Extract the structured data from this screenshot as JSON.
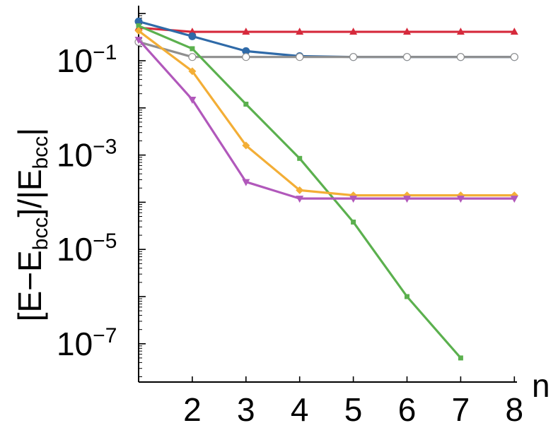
{
  "chart_data": {
    "type": "line",
    "x": [
      1,
      2,
      3,
      4,
      5,
      6,
      7,
      8
    ],
    "xlabel": "n",
    "ylabel": {
      "open_bracket": "[E−E",
      "sub1": "bcc",
      "close_bracket": "]/|E",
      "sub2": "bcc",
      "close_bar": "|"
    },
    "yscale": "log",
    "ylim": [
      1e-08,
      3
    ],
    "xlim": [
      1,
      8
    ],
    "x_ticks": [
      {
        "value": 2,
        "label": "2"
      },
      {
        "value": 3,
        "label": "3"
      },
      {
        "value": 4,
        "label": "4"
      },
      {
        "value": 5,
        "label": "5"
      },
      {
        "value": 6,
        "label": "6"
      },
      {
        "value": 7,
        "label": "7"
      },
      {
        "value": 8,
        "label": "8"
      }
    ],
    "y_ticks": [
      {
        "value": 0.1,
        "base": "10",
        "exp": "−1"
      },
      {
        "value": 0.001,
        "base": "10",
        "exp": "−3"
      },
      {
        "value": 1e-05,
        "base": "10",
        "exp": "−5"
      },
      {
        "value": 1e-07,
        "base": "10",
        "exp": "−7"
      }
    ],
    "grid": false,
    "series": [
      {
        "color": "#d62a3c",
        "marker": "triangle-up",
        "x": [
          1,
          2,
          3,
          4,
          5,
          6,
          7,
          8
        ],
        "values": [
          0.5,
          0.41,
          0.41,
          0.41,
          0.41,
          0.41,
          0.41,
          0.41
        ]
      },
      {
        "color": "#2f6aa8",
        "marker": "circle",
        "x": [
          1,
          2,
          3,
          4,
          5,
          6,
          7,
          8
        ],
        "values": [
          0.68,
          0.33,
          0.16,
          0.125,
          0.12,
          0.12,
          0.12,
          0.12
        ]
      },
      {
        "color": "#8f8f8f",
        "marker": "open-circle",
        "x": [
          1,
          2,
          3,
          4,
          5,
          6,
          7,
          8
        ],
        "values": [
          0.25,
          0.12,
          0.12,
          0.12,
          0.12,
          0.12,
          0.12,
          0.12
        ]
      },
      {
        "color": "#5bb04e",
        "marker": "square",
        "x": [
          1,
          2,
          3,
          4,
          5,
          6,
          7
        ],
        "values": [
          0.55,
          0.18,
          0.012,
          0.00085,
          3.8e-05,
          1e-06,
          5e-08
        ]
      },
      {
        "color": "#f3ae36",
        "marker": "diamond",
        "x": [
          1,
          2,
          3,
          4,
          5,
          6,
          7,
          8
        ],
        "values": [
          0.43,
          0.06,
          0.0016,
          0.00018,
          0.00014,
          0.00014,
          0.00014,
          0.00014
        ]
      },
      {
        "color": "#b158bb",
        "marker": "triangle-down",
        "x": [
          1,
          2,
          3,
          4,
          5,
          6,
          7,
          8
        ],
        "values": [
          0.28,
          0.015,
          0.00027,
          0.00012,
          0.00012,
          0.00012,
          0.00012,
          0.00012
        ]
      }
    ]
  }
}
